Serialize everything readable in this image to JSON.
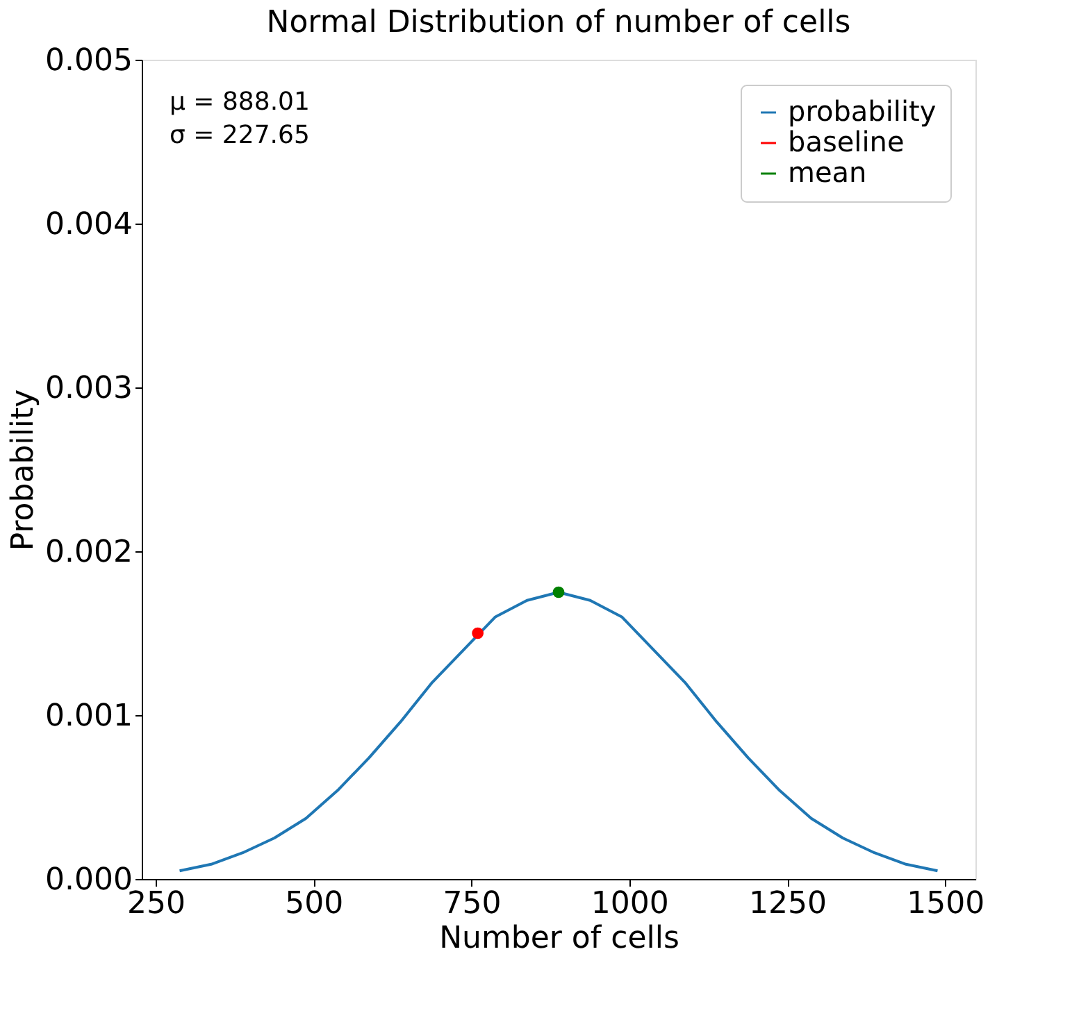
{
  "chart_data": {
    "type": "line",
    "title": "Normal Distribution of number of cells",
    "xlabel": "Number of cells",
    "ylabel": "Probability",
    "annotations": [
      "μ = 888.01",
      "σ = 227.65"
    ],
    "series": [
      {
        "name": "probability",
        "color": "#1f77b4",
        "x": [
          288,
          338,
          388,
          438,
          488,
          538,
          588,
          638,
          688,
          738,
          788,
          838,
          888,
          938,
          988,
          1038,
          1088,
          1138,
          1188,
          1238,
          1288,
          1338,
          1388,
          1438,
          1488
        ],
        "values": [
          5e-05,
          9e-05,
          0.00016,
          0.00025,
          0.00037,
          0.00054,
          0.00074,
          0.00096,
          0.0012,
          0.0014,
          0.0016,
          0.0017,
          0.00175,
          0.0017,
          0.0016,
          0.0014,
          0.0012,
          0.00096,
          0.00074,
          0.00054,
          0.00037,
          0.00025,
          0.00016,
          9e-05,
          5e-05
        ]
      },
      {
        "name": "baseline",
        "type": "scatter",
        "marker": "circle",
        "color": "#ff0000",
        "x": [
          760
        ],
        "values": [
          0.0015
        ]
      },
      {
        "name": "mean",
        "type": "scatter",
        "marker": "circle",
        "color": "#008000",
        "x": [
          888
        ],
        "values": [
          0.00175
        ]
      }
    ],
    "xlim": [
      228,
      1548
    ],
    "ylim": [
      0,
      0.005
    ],
    "xticks": [
      250,
      500,
      750,
      1000,
      1250,
      1500
    ],
    "yticks": [
      {
        "value": 0,
        "label": "0.000"
      },
      {
        "value": 0.001,
        "label": "0.001"
      },
      {
        "value": 0.002,
        "label": "0.002"
      },
      {
        "value": 0.003,
        "label": "0.003"
      },
      {
        "value": 0.004,
        "label": "0.004"
      },
      {
        "value": 0.005,
        "label": "0.005"
      }
    ],
    "grid": false,
    "legend": "top right",
    "line_style": "solid"
  }
}
